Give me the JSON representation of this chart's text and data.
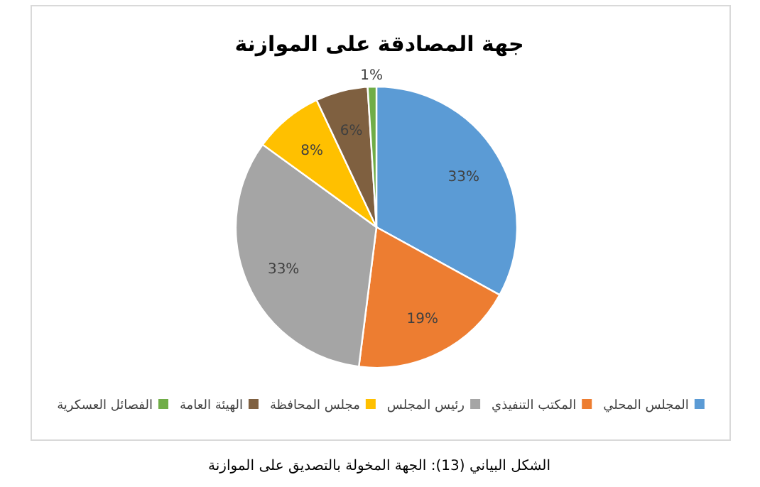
{
  "chart_data": {
    "type": "pie",
    "title": "جهة المصادقة على الموازنة",
    "categories": [
      "المجلس المحلي",
      "المكتب التنفيذي",
      "رئيس المجلس",
      "مجلس المحافظة",
      "الهيئة العامة",
      "الفصائل العسكرية"
    ],
    "values": [
      33,
      19,
      33,
      8,
      6,
      1
    ],
    "colors": [
      "#5b9bd5",
      "#ed7d31",
      "#a5a5a5",
      "#ffc000",
      "#7f6040",
      "#70ad47"
    ],
    "value_labels": [
      "33%",
      "19%",
      "33%",
      "8%",
      "6%",
      "1%"
    ],
    "legend": "bottom",
    "annotations": [
      "الشكل البياني (13): الجهة المخولة بالتصديق على الموازنة"
    ]
  }
}
